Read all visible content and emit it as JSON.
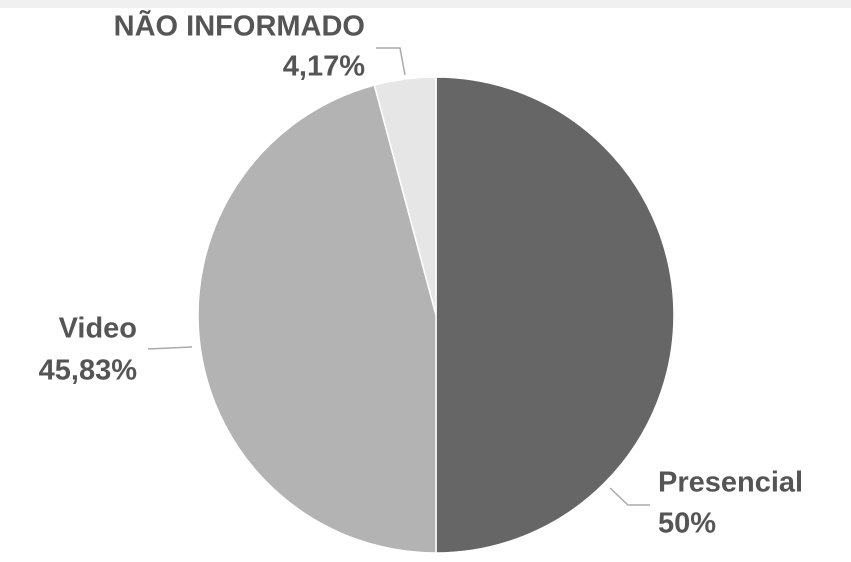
{
  "chart_data": {
    "type": "pie",
    "categories": [
      "Presencial",
      "Video",
      "NÃO INFORMADO"
    ],
    "values": [
      50,
      45.83,
      4.17
    ],
    "value_labels": [
      "50%",
      "45,83%",
      "4,17%"
    ],
    "colors": [
      "#666666",
      "#b3b3b3",
      "#e6e6e6"
    ]
  }
}
